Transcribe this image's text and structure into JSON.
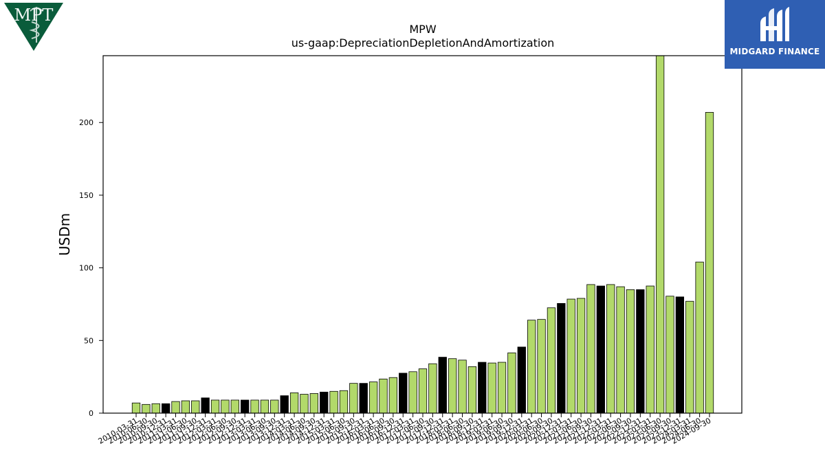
{
  "company_logo": {
    "text": "MPT",
    "icon": "caduceus-icon",
    "color": "#0a5c3b"
  },
  "brand_logo": {
    "text": "MIDGARD FINANCE",
    "icon": "midgard-mark-icon",
    "color": "#2f5fb3"
  },
  "chart_data": {
    "type": "bar",
    "title": "MPW",
    "subtitle": "us-gaap:DepreciationDepletionAndAmortization",
    "xlabel": "",
    "ylabel": "USDm",
    "ylim": [
      0,
      246
    ],
    "yticks": [
      0,
      50,
      100,
      150,
      200
    ],
    "grid": false,
    "colors": {
      "default": "#b2d96a",
      "highlight": "#000000",
      "edge": "#000000"
    },
    "categories": [
      "2010-03-31",
      "2010-06-30",
      "2010-09-30",
      "2010-12-31",
      "2011-03-31",
      "2011-06-30",
      "2011-09-30",
      "2011-12-31",
      "2012-03-31",
      "2012-06-30",
      "2012-09-30",
      "2012-12-31",
      "2013-03-31",
      "2013-06-30",
      "2013-09-30",
      "2013-12-31",
      "2014-03-31",
      "2014-06-30",
      "2014-09-30",
      "2014-12-31",
      "2015-03-31",
      "2015-06-30",
      "2015-09-30",
      "2015-12-31",
      "2016-03-31",
      "2016-06-30",
      "2016-09-30",
      "2016-12-31",
      "2017-03-31",
      "2017-06-30",
      "2017-09-30",
      "2017-12-31",
      "2018-03-31",
      "2018-06-30",
      "2018-09-30",
      "2018-12-31",
      "2019-03-31",
      "2019-06-30",
      "2019-09-30",
      "2019-12-31",
      "2020-03-31",
      "2020-06-30",
      "2020-09-30",
      "2020-12-31",
      "2021-03-31",
      "2021-06-30",
      "2021-09-30",
      "2021-12-31",
      "2022-03-31",
      "2022-06-30",
      "2022-09-30",
      "2022-12-31",
      "2023-03-31",
      "2023-06-30",
      "2023-09-30",
      "2023-12-31",
      "2024-03-31",
      "2024-06-30",
      "2024-09-30"
    ],
    "values": [
      7,
      6,
      6.5,
      6.5,
      8,
      8.5,
      8.5,
      10.5,
      9,
      9,
      9,
      9,
      9,
      9,
      9,
      12,
      14,
      13,
      13.5,
      14.5,
      15,
      15.5,
      20.5,
      20.5,
      21.5,
      23.5,
      24.5,
      27.5,
      28.5,
      30.5,
      34,
      38.5,
      37.5,
      36.5,
      32,
      35,
      34.5,
      35,
      41.5,
      45.5,
      64,
      64.5,
      72.5,
      75.5,
      78.5,
      79,
      88.5,
      87.5,
      88.5,
      87,
      85,
      85,
      87.5,
      246,
      80.5,
      80,
      77,
      104,
      207
    ],
    "highlight": [
      false,
      false,
      false,
      true,
      false,
      false,
      false,
      true,
      false,
      false,
      false,
      true,
      false,
      false,
      false,
      true,
      false,
      false,
      false,
      true,
      false,
      false,
      false,
      true,
      false,
      false,
      false,
      true,
      false,
      false,
      false,
      true,
      false,
      false,
      false,
      true,
      false,
      false,
      false,
      true,
      false,
      false,
      false,
      true,
      false,
      false,
      false,
      true,
      false,
      false,
      false,
      true,
      false,
      false,
      false,
      true,
      false,
      false,
      false
    ]
  }
}
